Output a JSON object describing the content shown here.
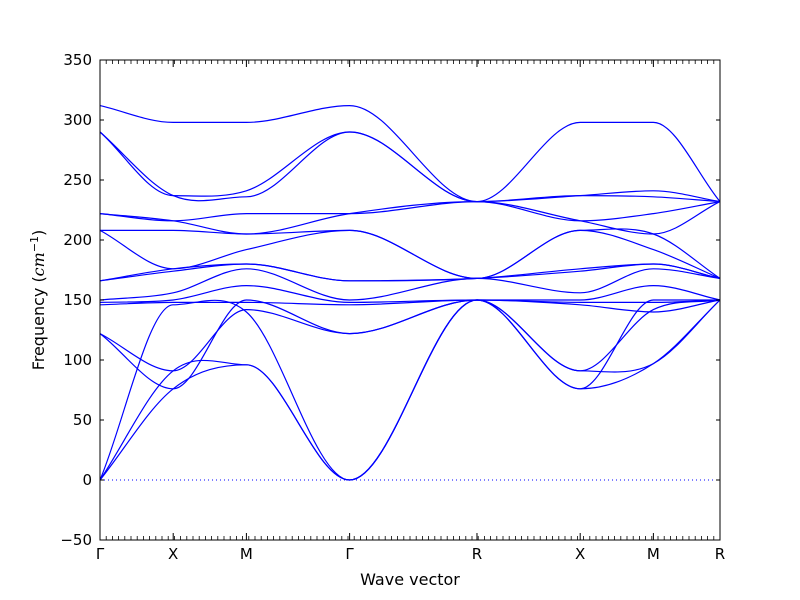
{
  "chart_data": {
    "type": "line",
    "title": "",
    "xlabel": "Wave vector",
    "ylabel": "Frequency",
    "ylabel_unit": "cm",
    "ylabel_unit_exp": "−1",
    "ylim": [
      -50,
      350
    ],
    "yticks": [
      -50,
      0,
      50,
      100,
      150,
      200,
      250,
      300,
      350
    ],
    "xlim": [
      0,
      8.47
    ],
    "xticks": [
      {
        "pos": 0,
        "label": "Γ"
      },
      {
        "pos": 1,
        "label": "X"
      },
      {
        "pos": 2,
        "label": "M"
      },
      {
        "pos": 3.41,
        "label": "Γ"
      },
      {
        "pos": 5.15,
        "label": "R"
      },
      {
        "pos": 6.56,
        "label": "X"
      },
      {
        "pos": 7.56,
        "label": "M"
      },
      {
        "pos": 8.47,
        "label": "R"
      }
    ],
    "line_color": "#0000ff",
    "zero_line": {
      "value": 0,
      "style": "dotted"
    },
    "grid": false,
    "legend": "none",
    "series": [
      {
        "x": [
          0,
          1,
          2,
          3.41,
          5.15,
          6.56,
          7.56,
          8.47
        ],
        "y": [
          0,
          76,
          96,
          0,
          150,
          76,
          97,
          150
        ]
      },
      {
        "x": [
          0,
          1,
          2,
          3.41,
          5.15,
          6.56,
          7.56,
          8.47
        ],
        "y": [
          0,
          91,
          96,
          0,
          150,
          91,
          97,
          150
        ]
      },
      {
        "x": [
          0,
          1,
          2,
          3.41,
          5.15,
          6.56,
          7.56,
          8.47
        ],
        "y": [
          0,
          146,
          140,
          0,
          150,
          146,
          140,
          150
        ]
      },
      {
        "x": [
          0,
          1,
          2,
          3.41,
          5.15,
          6.56,
          7.56,
          8.47
        ],
        "y": [
          122,
          91,
          142,
          122,
          150,
          91,
          142,
          150
        ]
      },
      {
        "x": [
          0,
          1,
          2,
          3.41,
          5.15,
          6.56,
          7.56,
          8.47
        ],
        "y": [
          122,
          76,
          150,
          122,
          150,
          76,
          150,
          150
        ]
      },
      {
        "x": [
          0,
          1,
          2,
          3.41,
          5.15,
          6.56,
          7.56,
          8.47
        ],
        "y": [
          146,
          148,
          148,
          146,
          150,
          148,
          148,
          150
        ]
      },
      {
        "x": [
          0,
          1,
          2,
          3.41,
          5.15,
          6.56,
          7.56,
          8.47
        ],
        "y": [
          148,
          150,
          162,
          148,
          150,
          150,
          162,
          150
        ]
      },
      {
        "x": [
          0,
          1,
          2,
          3.41,
          5.15,
          6.56,
          7.56,
          8.47
        ],
        "y": [
          150,
          156,
          176,
          150,
          168,
          156,
          176,
          168
        ]
      },
      {
        "x": [
          0,
          1,
          2,
          3.41,
          5.15,
          6.56,
          7.56,
          8.47
        ],
        "y": [
          166,
          174,
          180,
          166,
          168,
          174,
          180,
          168
        ]
      },
      {
        "x": [
          0,
          1,
          2,
          3.41,
          5.15,
          6.56,
          7.56,
          8.47
        ],
        "y": [
          166,
          176,
          180,
          166,
          168,
          176,
          180,
          168
        ]
      },
      {
        "x": [
          0,
          1,
          2,
          3.41,
          5.15,
          6.56,
          7.56,
          8.47
        ],
        "y": [
          208,
          176,
          192,
          208,
          168,
          208,
          192,
          168
        ]
      },
      {
        "x": [
          0,
          1,
          2,
          3.41,
          5.15,
          6.56,
          7.56,
          8.47
        ],
        "y": [
          208,
          208,
          205,
          208,
          168,
          208,
          205,
          168
        ]
      },
      {
        "x": [
          0,
          1,
          2,
          3.41,
          5.15,
          6.56,
          7.56,
          8.47
        ],
        "y": [
          222,
          216,
          205,
          222,
          232,
          216,
          205,
          232
        ]
      },
      {
        "x": [
          0,
          1,
          2,
          3.41,
          5.15,
          6.56,
          7.56,
          8.47
        ],
        "y": [
          222,
          216,
          222,
          222,
          232,
          216,
          222,
          232
        ]
      },
      {
        "x": [
          0,
          1,
          2,
          3.41,
          5.15,
          6.56,
          7.56,
          8.47
        ],
        "y": [
          290,
          237,
          236,
          290,
          232,
          237,
          236,
          232
        ]
      },
      {
        "x": [
          0,
          1,
          2,
          3.41,
          5.15,
          6.56,
          7.56,
          8.47
        ],
        "y": [
          290,
          237,
          241,
          290,
          232,
          237,
          241,
          232
        ]
      },
      {
        "x": [
          0,
          1,
          2,
          3.41,
          5.15,
          6.56,
          7.56,
          8.47
        ],
        "y": [
          312,
          298,
          298,
          312,
          232,
          298,
          298,
          232
        ]
      }
    ]
  }
}
